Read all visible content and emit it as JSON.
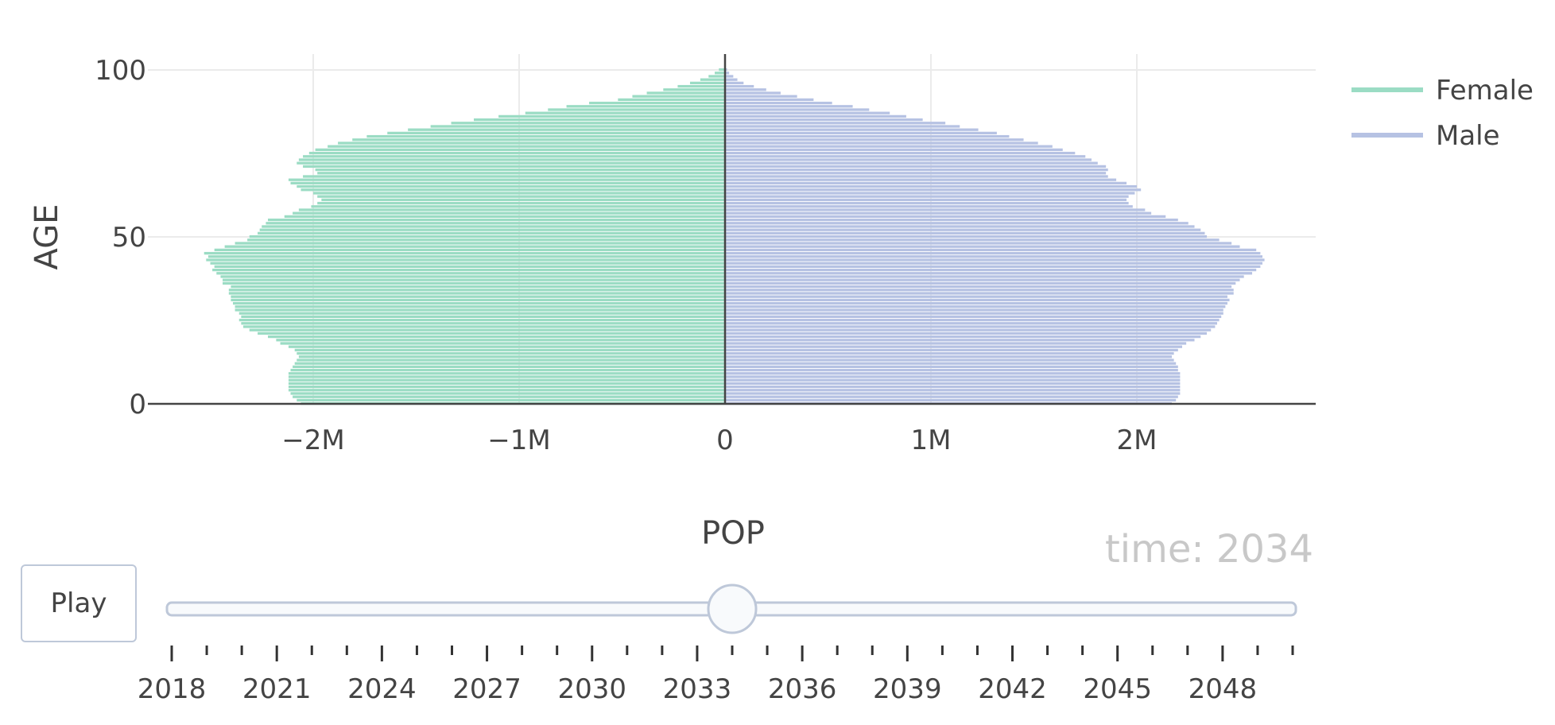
{
  "chart_data": {
    "type": "bar",
    "orientation": "horizontal",
    "mode": "population-pyramid",
    "xlabel": "POP",
    "ylabel": "AGE",
    "xlim": [
      -2800000,
      2800000
    ],
    "ylim": [
      0,
      100
    ],
    "x_ticks": [
      {
        "value": -2000000,
        "label": "−2M"
      },
      {
        "value": -1000000,
        "label": "−1M"
      },
      {
        "value": 0,
        "label": "0"
      },
      {
        "value": 1000000,
        "label": "1M"
      },
      {
        "value": 2000000,
        "label": "2M"
      }
    ],
    "y_ticks": [
      {
        "value": 0,
        "label": "0"
      },
      {
        "value": 50,
        "label": "50"
      },
      {
        "value": 100,
        "label": "100"
      }
    ],
    "grid": true,
    "legend_position": "top-right",
    "age_groups": [
      0,
      1,
      2,
      3,
      4,
      5,
      6,
      7,
      8,
      9,
      10,
      11,
      12,
      13,
      14,
      15,
      16,
      17,
      18,
      19,
      20,
      21,
      22,
      23,
      24,
      25,
      26,
      27,
      28,
      29,
      30,
      31,
      32,
      33,
      34,
      35,
      36,
      37,
      38,
      39,
      40,
      41,
      42,
      43,
      44,
      45,
      46,
      47,
      48,
      49,
      50,
      51,
      52,
      53,
      54,
      55,
      56,
      57,
      58,
      59,
      60,
      61,
      62,
      63,
      64,
      65,
      66,
      67,
      68,
      69,
      70,
      71,
      72,
      73,
      74,
      75,
      76,
      77,
      78,
      79,
      80,
      81,
      82,
      83,
      84,
      85,
      86,
      87,
      88,
      89,
      90,
      91,
      92,
      93,
      94,
      95,
      96,
      97,
      98,
      99,
      100
    ],
    "series": [
      {
        "name": "Female",
        "color": "#9bdcc4",
        "values": [
          -2060000,
          -2080000,
          -2100000,
          -2110000,
          -2120000,
          -2120000,
          -2120000,
          -2120000,
          -2120000,
          -2120000,
          -2110000,
          -2100000,
          -2090000,
          -2080000,
          -2070000,
          -2080000,
          -2090000,
          -2120000,
          -2160000,
          -2180000,
          -2220000,
          -2270000,
          -2310000,
          -2340000,
          -2350000,
          -2360000,
          -2350000,
          -2360000,
          -2380000,
          -2380000,
          -2390000,
          -2400000,
          -2400000,
          -2410000,
          -2410000,
          -2400000,
          -2440000,
          -2440000,
          -2450000,
          -2470000,
          -2490000,
          -2480000,
          -2500000,
          -2520000,
          -2510000,
          -2530000,
          -2480000,
          -2430000,
          -2380000,
          -2320000,
          -2310000,
          -2270000,
          -2260000,
          -2250000,
          -2230000,
          -2220000,
          -2140000,
          -2100000,
          -2070000,
          -2010000,
          -1980000,
          -1960000,
          -1980000,
          -2000000,
          -2060000,
          -2080000,
          -2110000,
          -2120000,
          -2050000,
          -1980000,
          -1990000,
          -2050000,
          -2080000,
          -2070000,
          -2050000,
          -2020000,
          -1990000,
          -1930000,
          -1880000,
          -1810000,
          -1740000,
          -1640000,
          -1540000,
          -1430000,
          -1330000,
          -1220000,
          -1100000,
          -970000,
          -860000,
          -770000,
          -660000,
          -520000,
          -450000,
          -380000,
          -300000,
          -230000,
          -170000,
          -120000,
          -80000,
          -50000,
          -30000
        ]
      },
      {
        "name": "Male",
        "color": "#b6c2e3",
        "values": [
          2170000,
          2190000,
          2200000,
          2210000,
          2210000,
          2210000,
          2210000,
          2210000,
          2210000,
          2210000,
          2200000,
          2200000,
          2190000,
          2180000,
          2170000,
          2180000,
          2200000,
          2220000,
          2240000,
          2280000,
          2310000,
          2340000,
          2360000,
          2380000,
          2390000,
          2400000,
          2410000,
          2420000,
          2420000,
          2430000,
          2440000,
          2450000,
          2440000,
          2470000,
          2470000,
          2460000,
          2480000,
          2500000,
          2520000,
          2560000,
          2580000,
          2600000,
          2610000,
          2620000,
          2610000,
          2600000,
          2580000,
          2500000,
          2460000,
          2400000,
          2340000,
          2330000,
          2310000,
          2280000,
          2250000,
          2200000,
          2140000,
          2070000,
          2040000,
          1980000,
          1960000,
          1950000,
          1960000,
          1990000,
          2020000,
          2000000,
          1950000,
          1900000,
          1860000,
          1850000,
          1860000,
          1850000,
          1810000,
          1780000,
          1750000,
          1700000,
          1640000,
          1590000,
          1520000,
          1450000,
          1380000,
          1320000,
          1230000,
          1140000,
          1070000,
          960000,
          880000,
          800000,
          700000,
          620000,
          520000,
          430000,
          350000,
          270000,
          200000,
          140000,
          90000,
          60000,
          40000,
          20000,
          10000
        ]
      }
    ]
  },
  "slider": {
    "current_label": "time: 2034",
    "current_value": 2034,
    "min": 2018,
    "max": 2050,
    "tick_labels": [
      "2018",
      "2021",
      "2024",
      "2027",
      "2030",
      "2033",
      "2036",
      "2039",
      "2042",
      "2045",
      "2048"
    ]
  },
  "controls": {
    "play_label": "Play"
  }
}
